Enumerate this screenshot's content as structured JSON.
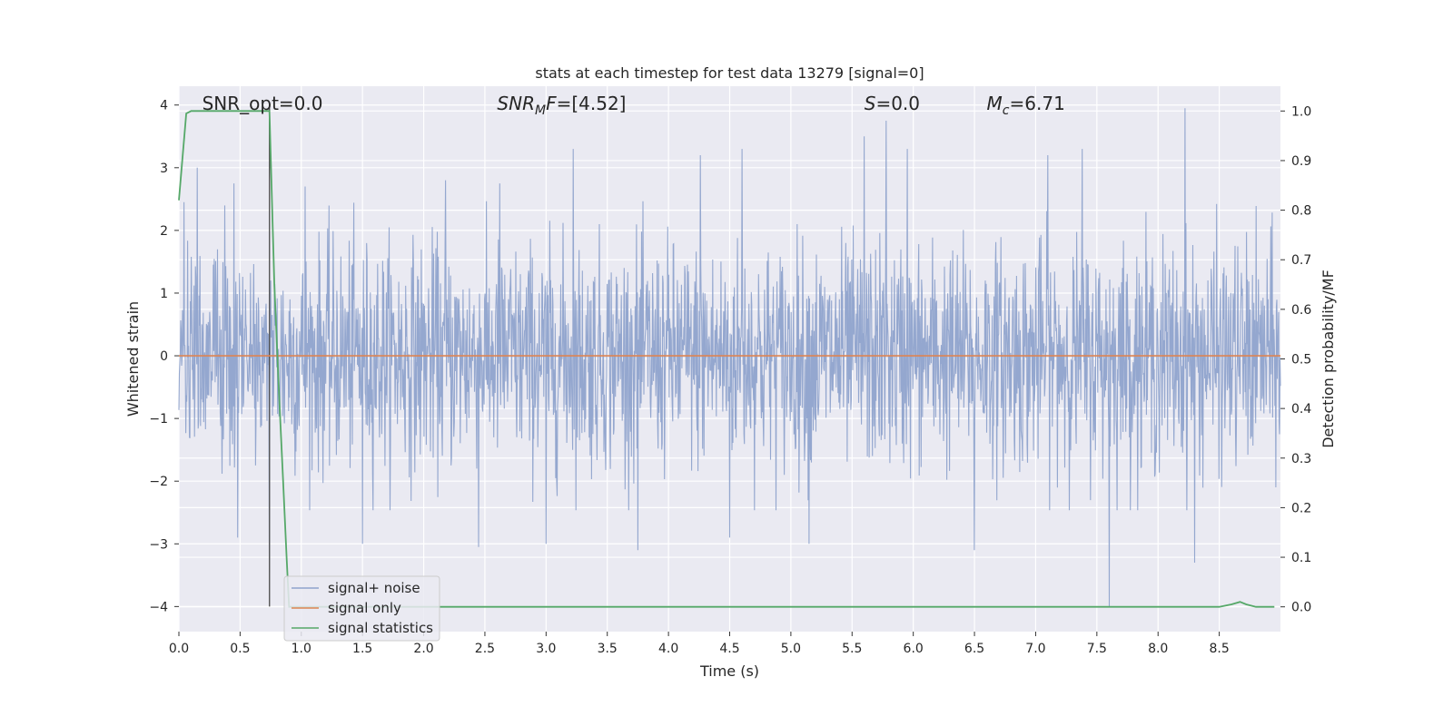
{
  "chart_data": {
    "type": "line",
    "title": "stats at each timestep for test data 13279 [signal=0]",
    "xlabel": "Time (s)",
    "ylabel": "Whitened strain",
    "y2label": "Detection probability/MF",
    "xlim": [
      0.0,
      9.0
    ],
    "ylim": [
      -4.4,
      4.3
    ],
    "y2lim": [
      -0.05,
      1.05
    ],
    "xticks": [
      0.0,
      0.5,
      1.0,
      1.5,
      2.0,
      2.5,
      3.0,
      3.5,
      4.0,
      4.5,
      5.0,
      5.5,
      6.0,
      6.5,
      7.0,
      7.5,
      8.0,
      8.5
    ],
    "xtick_labels": [
      "0.0",
      "0.5",
      "1.0",
      "1.5",
      "2.0",
      "2.5",
      "3.0",
      "3.5",
      "4.0",
      "4.5",
      "5.0",
      "5.5",
      "6.0",
      "6.5",
      "7.0",
      "7.5",
      "8.0",
      "8.5"
    ],
    "yticks": [
      4,
      3,
      2,
      1,
      0,
      -1,
      -2,
      -3,
      -4
    ],
    "ytick_labels": [
      "4",
      "3",
      "2",
      "1",
      "0",
      "−1",
      "−2",
      "−3",
      "−4"
    ],
    "y2ticks": [
      1.0,
      0.9,
      0.8,
      0.7,
      0.6,
      0.5,
      0.4,
      0.3,
      0.2,
      0.1,
      0.0
    ],
    "y2tick_labels": [
      "1.0",
      "0.9",
      "0.8",
      "0.7",
      "0.6",
      "0.5",
      "0.4",
      "0.3",
      "0.2",
      "0.1",
      "0.0"
    ],
    "grid": true,
    "legend_position": "lower-left",
    "annotations": {
      "snr_opt": "SNR_opt=0.0",
      "snr_mf_label": "SNR",
      "snr_mf_sub": "M",
      "snr_mf_rest": "F",
      "snr_mf_value": "=[4.52]",
      "s_label": "S",
      "s_value": "=0.0",
      "mc_label": "M",
      "mc_sub": "c",
      "mc_value": "=6.71"
    },
    "series": [
      {
        "name": "signal+ noise",
        "color": "#8fa3cc",
        "axis": "left",
        "kind": "noise",
        "envelope_peaks": [
          {
            "x": 0.04,
            "y": 2.45
          },
          {
            "x": 0.15,
            "y": 3.0
          },
          {
            "x": 0.45,
            "y": 2.75
          },
          {
            "x": 0.74,
            "y": -3.45
          },
          {
            "x": 0.75,
            "y": 1.2
          },
          {
            "x": 1.03,
            "y": 2.7
          },
          {
            "x": 2.18,
            "y": 2.8
          },
          {
            "x": 2.62,
            "y": 2.75
          },
          {
            "x": 3.22,
            "y": 3.3
          },
          {
            "x": 4.26,
            "y": 3.2
          },
          {
            "x": 4.6,
            "y": 3.3
          },
          {
            "x": 5.6,
            "y": 3.5
          },
          {
            "x": 5.78,
            "y": 3.75
          },
          {
            "x": 5.95,
            "y": 3.3
          },
          {
            "x": 7.1,
            "y": 3.2
          },
          {
            "x": 7.38,
            "y": 3.3
          },
          {
            "x": 8.22,
            "y": 3.95
          },
          {
            "x": 0.48,
            "y": -2.9
          },
          {
            "x": 1.5,
            "y": -3.0
          },
          {
            "x": 2.45,
            "y": -3.05
          },
          {
            "x": 3.0,
            "y": -3.0
          },
          {
            "x": 3.75,
            "y": -3.1
          },
          {
            "x": 4.5,
            "y": -2.9
          },
          {
            "x": 5.15,
            "y": -3.0
          },
          {
            "x": 6.5,
            "y": -3.1
          },
          {
            "x": 7.6,
            "y": -4.0
          },
          {
            "x": 8.3,
            "y": -3.3
          }
        ],
        "typical_amplitude": 1.6
      },
      {
        "name": "signal only",
        "color": "#dd8452",
        "axis": "left",
        "x": [
          0.0,
          9.0
        ],
        "y": [
          0.0,
          0.0
        ]
      },
      {
        "name": "signal statistics",
        "color": "#55a868",
        "axis": "right",
        "x": [
          0.0,
          0.06,
          0.1,
          0.15,
          0.2,
          0.3,
          0.4,
          0.5,
          0.6,
          0.7,
          0.74,
          0.78,
          0.82,
          0.85,
          0.88,
          0.9,
          1.0,
          2.0,
          3.0,
          4.0,
          5.0,
          6.0,
          7.0,
          8.0,
          8.5,
          8.6,
          8.67,
          8.72,
          8.8,
          8.95
        ],
        "y": [
          0.82,
          0.995,
          1.0,
          1.0,
          1.0,
          1.0,
          1.0,
          1.0,
          1.0,
          1.0,
          1.0,
          0.65,
          0.42,
          0.26,
          0.1,
          0.0,
          0.0,
          0.0,
          0.0,
          0.0,
          0.0,
          0.0,
          0.0,
          0.0,
          0.0,
          0.005,
          0.01,
          0.005,
          0.0,
          0.0
        ]
      }
    ],
    "extra_lines": [
      {
        "name": "marker-line",
        "color": "#555555",
        "x": [
          0.74,
          0.74
        ],
        "y": [
          -4.0,
          4.0
        ]
      }
    ]
  }
}
